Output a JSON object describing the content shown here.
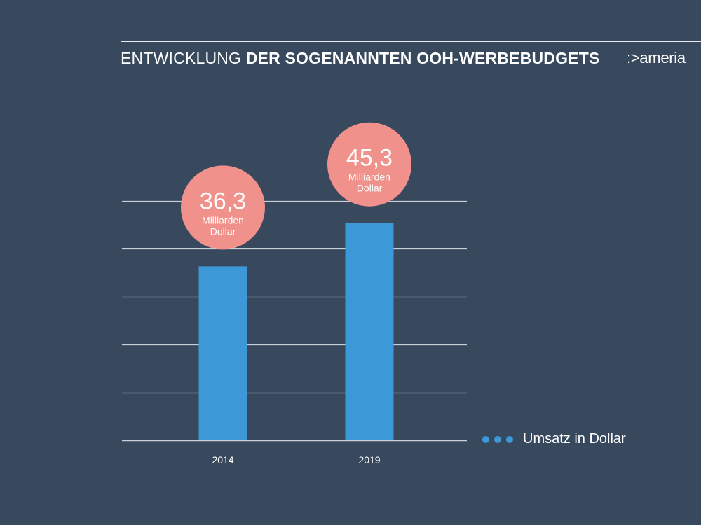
{
  "header": {
    "title_light": "ENTWICKLUNG",
    "title_bold": "DER SOGENANNTEN OOH-WERBEBUDGETS",
    "logo": ":>ameria"
  },
  "legend": {
    "label": "Umsatz in Dollar",
    "color": "#3d98d7"
  },
  "colors": {
    "background": "#38495e",
    "bar": "#3d98d7",
    "bubble": "#f0928b",
    "bubble_text": "#ffffff",
    "grid": "#c9d0d8"
  },
  "chart_data": {
    "type": "bar",
    "title": "ENTWICKLUNG DER SOGENANNTEN OOH-WERBEBUDGETS",
    "categories": [
      "2014",
      "2019"
    ],
    "series": [
      {
        "name": "Umsatz in Dollar",
        "values": [
          36.3,
          45.3
        ]
      }
    ],
    "value_labels": [
      {
        "value": "36,3",
        "unit_line1": "Milliarden",
        "unit_line2": "Dollar"
      },
      {
        "value": "45,3",
        "unit_line1": "Milliarden",
        "unit_line2": "Dollar"
      }
    ],
    "xlabel": "",
    "ylabel": "",
    "ylim": [
      0,
      60
    ],
    "grid": true,
    "legend_position": "right"
  }
}
